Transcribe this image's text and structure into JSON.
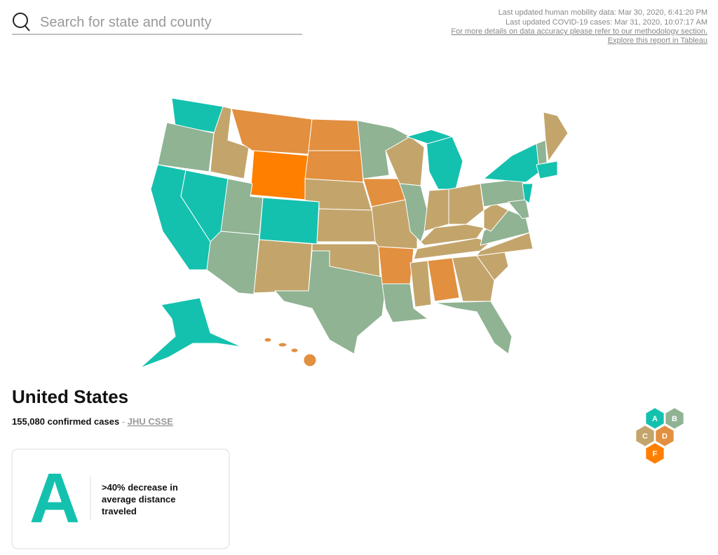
{
  "search": {
    "placeholder": "Search for state and county"
  },
  "info": {
    "mobility_updated": "Last updated human mobility data: Mar 30, 2020, 6:41:20 PM",
    "cases_updated": "Last updated COVID-19 cases: Mar 31, 2020, 10:07:17 AM",
    "methodology_link": "For more details on data accuracy please refer to our methodology section.",
    "tableau_link": "Explore this report in Tableau"
  },
  "region": {
    "title": "United States",
    "cases": "155,080 confirmed cases",
    "separator": " - ",
    "source": "JHU CSSE"
  },
  "legend": {
    "grades": [
      "A",
      "B",
      "C",
      "D",
      "F"
    ]
  },
  "card": {
    "grade": "A",
    "description": [
      ">40% decrease in",
      "average distance",
      "traveled"
    ]
  }
}
